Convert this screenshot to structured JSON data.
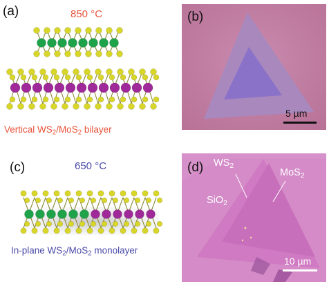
{
  "panels": {
    "a": {
      "label": "(a)",
      "temperature": "850 °C",
      "caption": {
        "prefix": "Vertical WS",
        "sub1": "2",
        "mid": "/MoS",
        "sub2": "2",
        "suffix": " bilayer"
      },
      "color": "#e8533b"
    },
    "b": {
      "label": "(b)",
      "scale_bar": "5 µm"
    },
    "c": {
      "label": "(c)",
      "temperature": "650 °C",
      "caption": {
        "prefix": "In-plane WS",
        "sub1": "2",
        "mid": "/MoS",
        "sub2": "2",
        "suffix": " monolayer"
      },
      "color": "#4a4aa8"
    },
    "d": {
      "label": "(d)",
      "scale_bar": "10 µm",
      "labels": {
        "ws2": {
          "main": "WS",
          "sub": "2"
        },
        "mos2": {
          "main": "MoS",
          "sub": "2"
        },
        "sio2": {
          "main": "SiO",
          "sub": "2"
        }
      }
    }
  },
  "colors": {
    "tungsten": "#1fa34a",
    "molybdenum": "#a0299a",
    "sulfur": "#d9d62a",
    "substrate_b": "#c27fa6",
    "substrate_d": "#d284c4"
  }
}
